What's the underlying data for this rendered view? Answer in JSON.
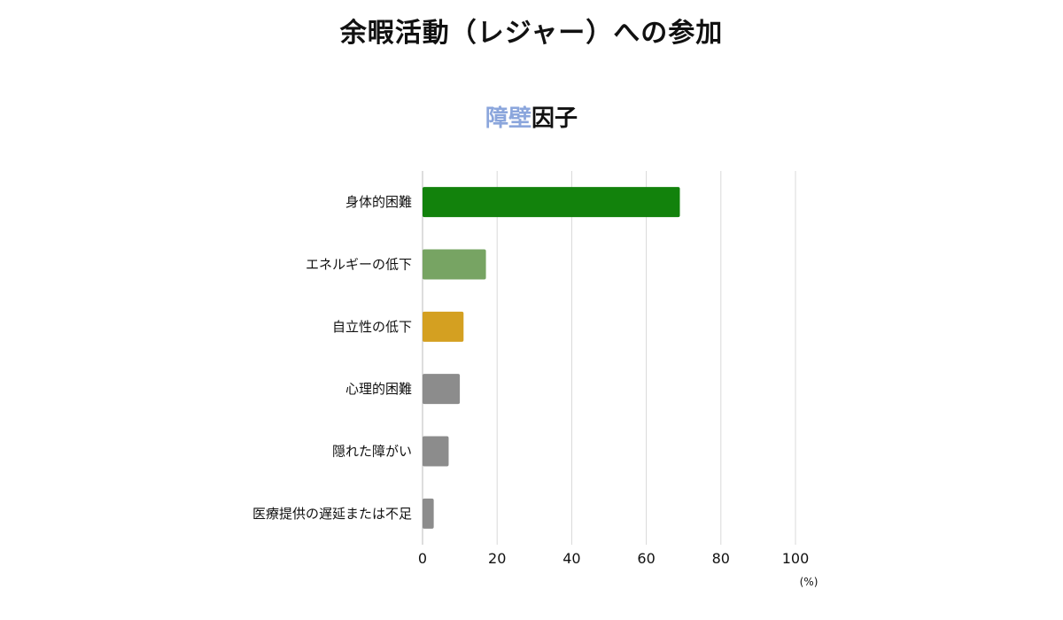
{
  "header": {
    "title": "余暇活動（レジャー）への参加",
    "subtitle_accent": "障壁",
    "subtitle_rest": "因子"
  },
  "colors": {
    "accent_text": "#8BA6DC",
    "grid": "#D9D9D9",
    "axis": "#BBBBBB"
  },
  "chart_data": {
    "type": "bar",
    "orientation": "horizontal",
    "title": "障壁因子",
    "categories": [
      "身体的困難",
      "エネルギーの低下",
      "自立性の低下",
      "心理的困難",
      "隠れた障がい",
      "医療提供の遅延または不足"
    ],
    "values": [
      69,
      17,
      11,
      10,
      7,
      3
    ],
    "bar_colors": [
      "#12820C",
      "#77A463",
      "#D4A021",
      "#8C8C8C",
      "#8C8C8C",
      "#8C8C8C"
    ],
    "xlim": [
      0,
      100
    ],
    "xticks": [
      0,
      20,
      40,
      60,
      80,
      100
    ],
    "unit": "(%)",
    "grid": true,
    "legend": "none"
  }
}
